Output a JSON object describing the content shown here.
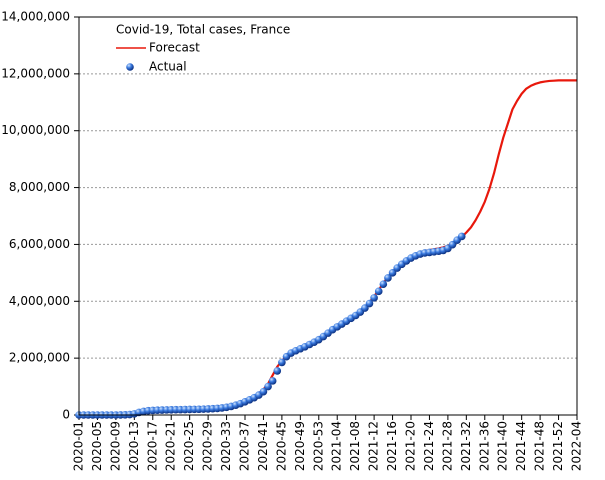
{
  "chart_data": {
    "type": "line",
    "title": "Covid-19, Total cases, France",
    "categories": [
      "2020-01",
      null,
      null,
      null,
      "2020-05",
      null,
      null,
      null,
      "2020-09",
      null,
      null,
      null,
      "2020-13",
      null,
      null,
      null,
      "2020-17",
      null,
      null,
      null,
      "2020-21",
      null,
      null,
      null,
      "2020-25",
      null,
      null,
      null,
      "2020-29",
      null,
      null,
      null,
      "2020-33",
      null,
      null,
      null,
      "2020-37",
      null,
      null,
      null,
      "2020-41",
      null,
      null,
      null,
      "2020-45",
      null,
      null,
      null,
      "2020-49",
      null,
      null,
      null,
      "2020-53",
      null,
      null,
      null,
      "2021-04",
      null,
      null,
      null,
      "2021-08",
      null,
      null,
      null,
      "2021-12",
      null,
      null,
      null,
      "2021-16",
      null,
      null,
      null,
      "2021-20",
      null,
      null,
      null,
      "2021-24",
      null,
      null,
      null,
      "2021-28",
      null,
      null,
      null,
      "2021-32",
      null,
      null,
      null,
      "2021-36",
      null,
      null,
      null,
      "2021-40",
      null,
      null,
      null,
      "2021-44",
      null,
      null,
      null,
      "2021-48",
      null,
      null,
      null,
      "2021-52",
      null,
      null,
      null,
      "2022-04"
    ],
    "series": [
      {
        "name": "Forecast",
        "color": "#e8180c",
        "marker": "line",
        "values": [
          0,
          0,
          0,
          0,
          0,
          0,
          0,
          0,
          0,
          1000,
          5000,
          16000,
          40000,
          90000,
          125000,
          150000,
          160000,
          168000,
          175000,
          180000,
          183000,
          186000,
          189000,
          192000,
          195000,
          198000,
          202000,
          207000,
          213000,
          221000,
          231000,
          247000,
          272000,
          300000,
          345000,
          400000,
          465000,
          545000,
          640000,
          760000,
          900000,
          1100000,
          1400000,
          1700000,
          1900000,
          2080000,
          2200000,
          2300000,
          2380000,
          2460000,
          2540000,
          2620000,
          2710000,
          2810000,
          2920000,
          3030000,
          3130000,
          3230000,
          3330000,
          3430000,
          3540000,
          3660000,
          3800000,
          3970000,
          4170000,
          4400000,
          4640000,
          4850000,
          5030000,
          5200000,
          5330000,
          5450000,
          5560000,
          5650000,
          5720000,
          5770000,
          5800000,
          5830000,
          5860000,
          5900000,
          5950000,
          6020000,
          6120000,
          6260000,
          6420000,
          6600000,
          6850000,
          7150000,
          7500000,
          7950000,
          8500000,
          9150000,
          9750000,
          10250000,
          10750000,
          11050000,
          11300000,
          11480000,
          11580000,
          11650000,
          11700000,
          11730000,
          11750000,
          11760000,
          11770000,
          11770000,
          11770000,
          11770000,
          11770000
        ]
      },
      {
        "name": "Actual",
        "color": "#1f5fd0",
        "marker": "dot",
        "values": [
          0,
          0,
          0,
          0,
          0,
          0,
          0,
          0,
          0,
          1000,
          5000,
          16000,
          40000,
          90000,
          125000,
          150000,
          160000,
          168000,
          175000,
          180000,
          183000,
          186000,
          189000,
          192000,
          195000,
          198000,
          202000,
          207000,
          213000,
          221000,
          231000,
          247000,
          272000,
          300000,
          345000,
          400000,
          465000,
          535000,
          610000,
          700000,
          820000,
          1000000,
          1200000,
          1550000,
          1850000,
          2050000,
          2180000,
          2260000,
          2330000,
          2400000,
          2480000,
          2560000,
          2650000,
          2760000,
          2880000,
          3000000,
          3100000,
          3200000,
          3300000,
          3400000,
          3500000,
          3620000,
          3760000,
          3920000,
          4120000,
          4350000,
          4600000,
          4820000,
          5000000,
          5170000,
          5300000,
          5420000,
          5520000,
          5600000,
          5660000,
          5700000,
          5720000,
          5740000,
          5760000,
          5790000,
          5860000,
          5990000,
          6150000,
          6280000,
          null,
          null,
          null,
          null,
          null,
          null,
          null,
          null,
          null,
          null,
          null,
          null,
          null,
          null,
          null,
          null,
          null,
          null,
          null,
          null,
          null,
          null,
          null,
          null,
          null
        ]
      }
    ],
    "ylim": [
      0,
      14000000
    ],
    "yticks": [
      0,
      {
        "value": 2000000,
        "label": "2,000,000"
      },
      {
        "value": 4000000,
        "label": "4,000,000"
      },
      {
        "value": 6000000,
        "label": "6,000,000"
      },
      {
        "value": 8000000,
        "label": "8,000,000"
      },
      {
        "value": 10000000,
        "label": "10,000,000"
      },
      {
        "value": 12000000,
        "label": "12,000,000"
      },
      {
        "value": 14000000,
        "label": "14,000,000"
      }
    ],
    "grid": true,
    "legend": "upper left"
  }
}
